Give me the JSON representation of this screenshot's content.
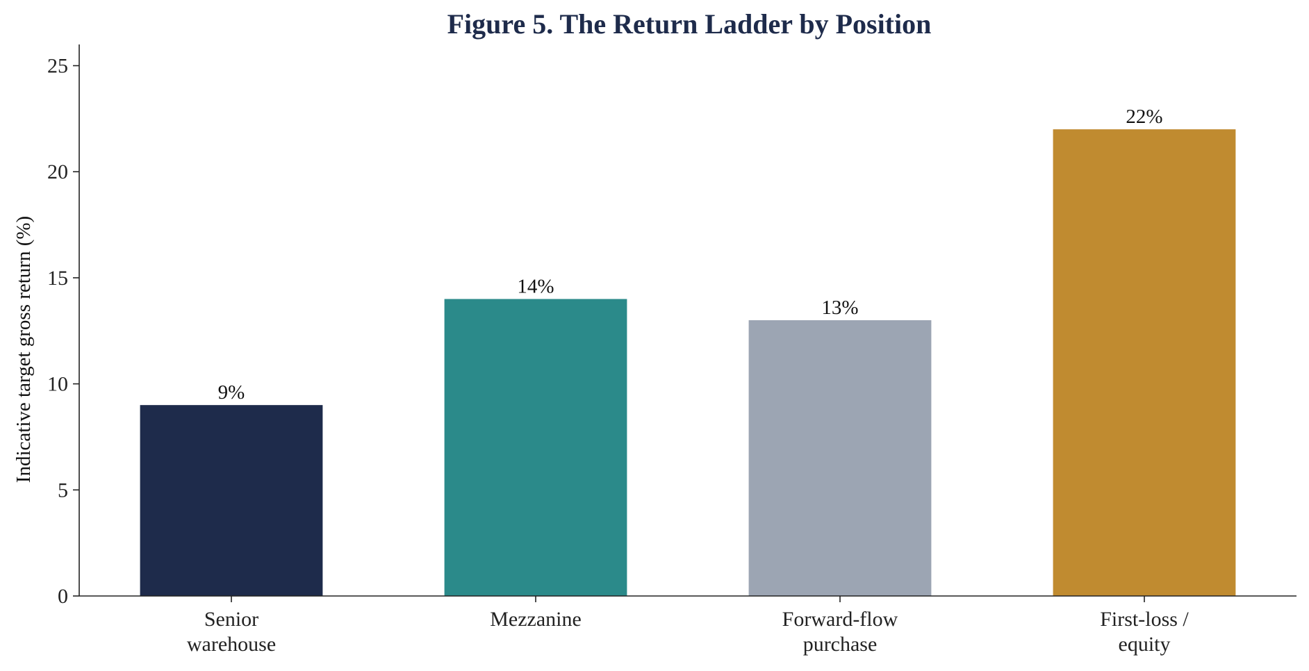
{
  "chart_data": {
    "type": "bar",
    "title": "Figure 5. The Return Ladder by Position",
    "xlabel": "",
    "ylabel": "Indicative target gross return (%)",
    "ylim": [
      0,
      26
    ],
    "yticks": [
      0,
      5,
      10,
      15,
      20,
      25
    ],
    "categories": [
      [
        "Senior",
        "warehouse"
      ],
      [
        "Mezzanine"
      ],
      [
        "Forward-flow",
        "purchase"
      ],
      [
        "First-loss /",
        "equity"
      ]
    ],
    "values": [
      9,
      14,
      13,
      22
    ],
    "data_labels": [
      "9%",
      "14%",
      "13%",
      "22%"
    ],
    "colors": [
      "#1e2b4b",
      "#2b8a8a",
      "#9ca5b3",
      "#c08b30"
    ],
    "title_color": "#1e2b4b",
    "axis_color": "#222222",
    "grid": false,
    "legend": "none"
  }
}
